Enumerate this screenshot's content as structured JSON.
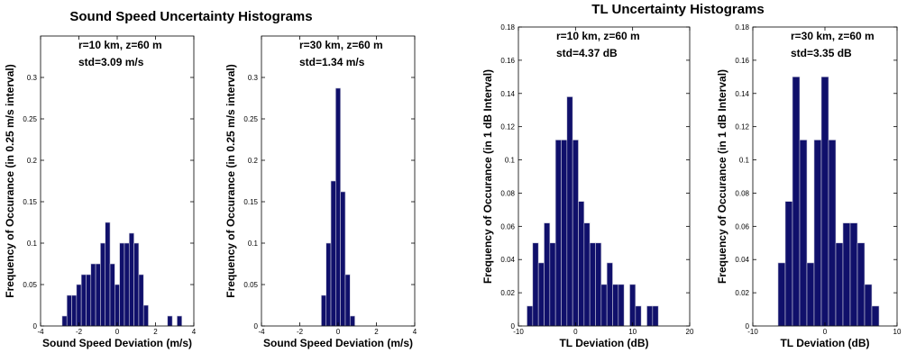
{
  "figure": {
    "left_title": "Sound Speed Uncertainty Histograms",
    "right_title": "TL Uncertainty Histograms"
  },
  "colors": {
    "bar_fill": "#10106b",
    "bar_edge": "#c8c8d8",
    "axis": "#000000"
  },
  "chart_data": [
    {
      "type": "bar",
      "annotation": [
        "r=10 km, z=60 m",
        "std=3.09 m/s"
      ],
      "xlabel": "Sound Speed Deviation (m/s)",
      "ylabel": "Frequency of Occurance (in 0.25 m/s interval)",
      "xlim": [
        -4,
        4
      ],
      "ylim": [
        0,
        0.35
      ],
      "bin_width": 0.25,
      "xticks": [
        -4,
        -2,
        0,
        2,
        4
      ],
      "yticks": [
        0,
        0.05,
        0.1,
        0.15,
        0.2,
        0.25,
        0.3
      ],
      "yticklabels": [
        "0",
        "0.05",
        "0.1",
        "0.15",
        "0.2",
        "0.25",
        "0.3"
      ],
      "bins": [
        -2.75,
        -2.5,
        -2.25,
        -2.0,
        -1.75,
        -1.5,
        -1.25,
        -1.0,
        -0.75,
        -0.5,
        -0.25,
        0.0,
        0.25,
        0.5,
        0.75,
        1.0,
        1.25,
        1.5,
        2.75,
        3.25
      ],
      "values": [
        0.012,
        0.037,
        0.037,
        0.05,
        0.062,
        0.062,
        0.075,
        0.075,
        0.1,
        0.125,
        0.075,
        0.05,
        0.1,
        0.1,
        0.112,
        0.1,
        0.062,
        0.025,
        0.012,
        0.012
      ]
    },
    {
      "type": "bar",
      "annotation": [
        "r=30 km, z=60 m",
        "std=1.34 m/s"
      ],
      "xlabel": "Sound Speed Deviation (m/s)",
      "ylabel": "Frequency of Occurance (in 0.25 m/s interval)",
      "xlim": [
        -4,
        4
      ],
      "ylim": [
        0,
        0.35
      ],
      "bin_width": 0.25,
      "xticks": [
        -4,
        -2,
        0,
        2,
        4
      ],
      "yticks": [
        0,
        0.05,
        0.1,
        0.15,
        0.2,
        0.25,
        0.3
      ],
      "yticklabels": [
        "0",
        "0.05",
        "0.1",
        "0.15",
        "0.2",
        "0.25",
        "0.3"
      ],
      "bins": [
        -0.75,
        -0.5,
        -0.25,
        0.0,
        0.25,
        0.5,
        0.75
      ],
      "values": [
        0.037,
        0.1,
        0.175,
        0.287,
        0.162,
        0.062,
        0.012
      ]
    },
    {
      "type": "bar",
      "annotation": [
        "r=10 km, z=60 m",
        "std=4.37 dB"
      ],
      "xlabel": "TL Deviation (dB)",
      "ylabel": "Frequency of Occurance (in 1 dB Interval)",
      "xlim": [
        -10,
        20
      ],
      "ylim": [
        0,
        0.18
      ],
      "bin_width": 1,
      "xticks": [
        -10,
        0,
        10,
        20
      ],
      "yticks": [
        0,
        0.02,
        0.04,
        0.06,
        0.08,
        0.1,
        0.12,
        0.14,
        0.16,
        0.18
      ],
      "yticklabels": [
        "0",
        "0.02",
        "0.04",
        "0.06",
        "0.08",
        "0.1",
        "0.12",
        "0.14",
        "0.16",
        "0.18"
      ],
      "bins": [
        -8,
        -7,
        -6,
        -5,
        -4,
        -3,
        -2,
        -1,
        0,
        1,
        2,
        3,
        4,
        5,
        6,
        7,
        8,
        10,
        11,
        13,
        14
      ],
      "values": [
        0.012,
        0.05,
        0.038,
        0.062,
        0.05,
        0.112,
        0.112,
        0.138,
        0.112,
        0.075,
        0.062,
        0.05,
        0.05,
        0.025,
        0.038,
        0.025,
        0.025,
        0.025,
        0.012,
        0.012,
        0.012
      ]
    },
    {
      "type": "bar",
      "annotation": [
        "r=30 km, z=60 m",
        "std=3.35 dB"
      ],
      "xlabel": "TL Deviation (dB)",
      "ylabel": "Frequency of Occurance (in 1 dB Interval)",
      "xlim": [
        -10,
        10
      ],
      "ylim": [
        0,
        0.18
      ],
      "bin_width": 1,
      "xticks": [
        -10,
        0,
        10
      ],
      "yticks": [
        0,
        0.02,
        0.04,
        0.06,
        0.08,
        0.1,
        0.12,
        0.14,
        0.16,
        0.18
      ],
      "yticklabels": [
        "0",
        "0.02",
        "0.04",
        "0.06",
        "0.08",
        "0.1",
        "0.12",
        "0.14",
        "0.16",
        "0.18"
      ],
      "bins": [
        -6,
        -5,
        -4,
        -3,
        -2,
        -1,
        0,
        1,
        2,
        3,
        4,
        5,
        6,
        7
      ],
      "values": [
        0.038,
        0.075,
        0.15,
        0.112,
        0.038,
        0.112,
        0.15,
        0.112,
        0.05,
        0.062,
        0.062,
        0.05,
        0.025,
        0.012
      ]
    }
  ]
}
